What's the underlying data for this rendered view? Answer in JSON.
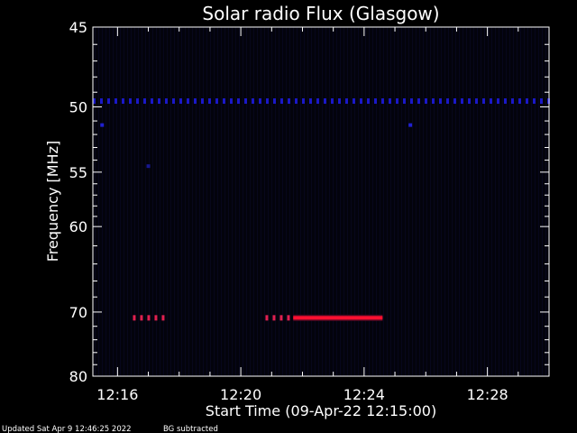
{
  "chart_data": {
    "type": "heatmap",
    "title": "Solar radio Flux (Glasgow)",
    "xlabel": "Start Time (09-Apr-22 12:15:00)",
    "ylabel": "Frequency [MHz]",
    "x_unit": "minutes after 12:00",
    "x_range": [
      15.2,
      30.0
    ],
    "x_ticks": [
      {
        "value": 16,
        "label": "12:16"
      },
      {
        "value": 20,
        "label": "12:20"
      },
      {
        "value": 24,
        "label": "12:24"
      },
      {
        "value": 28,
        "label": "12:28"
      }
    ],
    "y_scale": "reciprocal",
    "y_range": [
      45,
      80
    ],
    "y_ticks": [
      {
        "value": 45,
        "label": "45"
      },
      {
        "value": 50,
        "label": "50"
      },
      {
        "value": 55,
        "label": "55"
      },
      {
        "value": 60,
        "label": "60"
      },
      {
        "value": 70,
        "label": "70"
      },
      {
        "value": 80,
        "label": "80"
      }
    ],
    "background_color": "#03030c",
    "features": [
      {
        "kind": "band",
        "freq_mhz": 49.6,
        "x_start": 15.2,
        "x_end": 30.0,
        "pattern": "dashed",
        "color": "#1a18c8"
      },
      {
        "kind": "band",
        "freq_mhz": 70.8,
        "x_start": 16.5,
        "x_end": 17.6,
        "pattern": "dashed",
        "color": "#e02050"
      },
      {
        "kind": "band",
        "freq_mhz": 70.8,
        "x_start": 20.8,
        "x_end": 21.7,
        "pattern": "dashed",
        "color": "#e02050"
      },
      {
        "kind": "band",
        "freq_mhz": 70.8,
        "x_start": 21.7,
        "x_end": 24.6,
        "pattern": "solid",
        "color": "#ff1030"
      },
      {
        "kind": "spot",
        "freq_mhz": 51.3,
        "x": 15.5,
        "color": "#2020d0"
      },
      {
        "kind": "spot",
        "freq_mhz": 51.3,
        "x": 25.5,
        "color": "#2020d0"
      },
      {
        "kind": "spot",
        "freq_mhz": 54.5,
        "x": 17.0,
        "color": "#181890"
      }
    ]
  },
  "footer": {
    "updated": "Updated Sat Apr  9 12:46:25 2022",
    "bg_note": "BG subtracted"
  }
}
